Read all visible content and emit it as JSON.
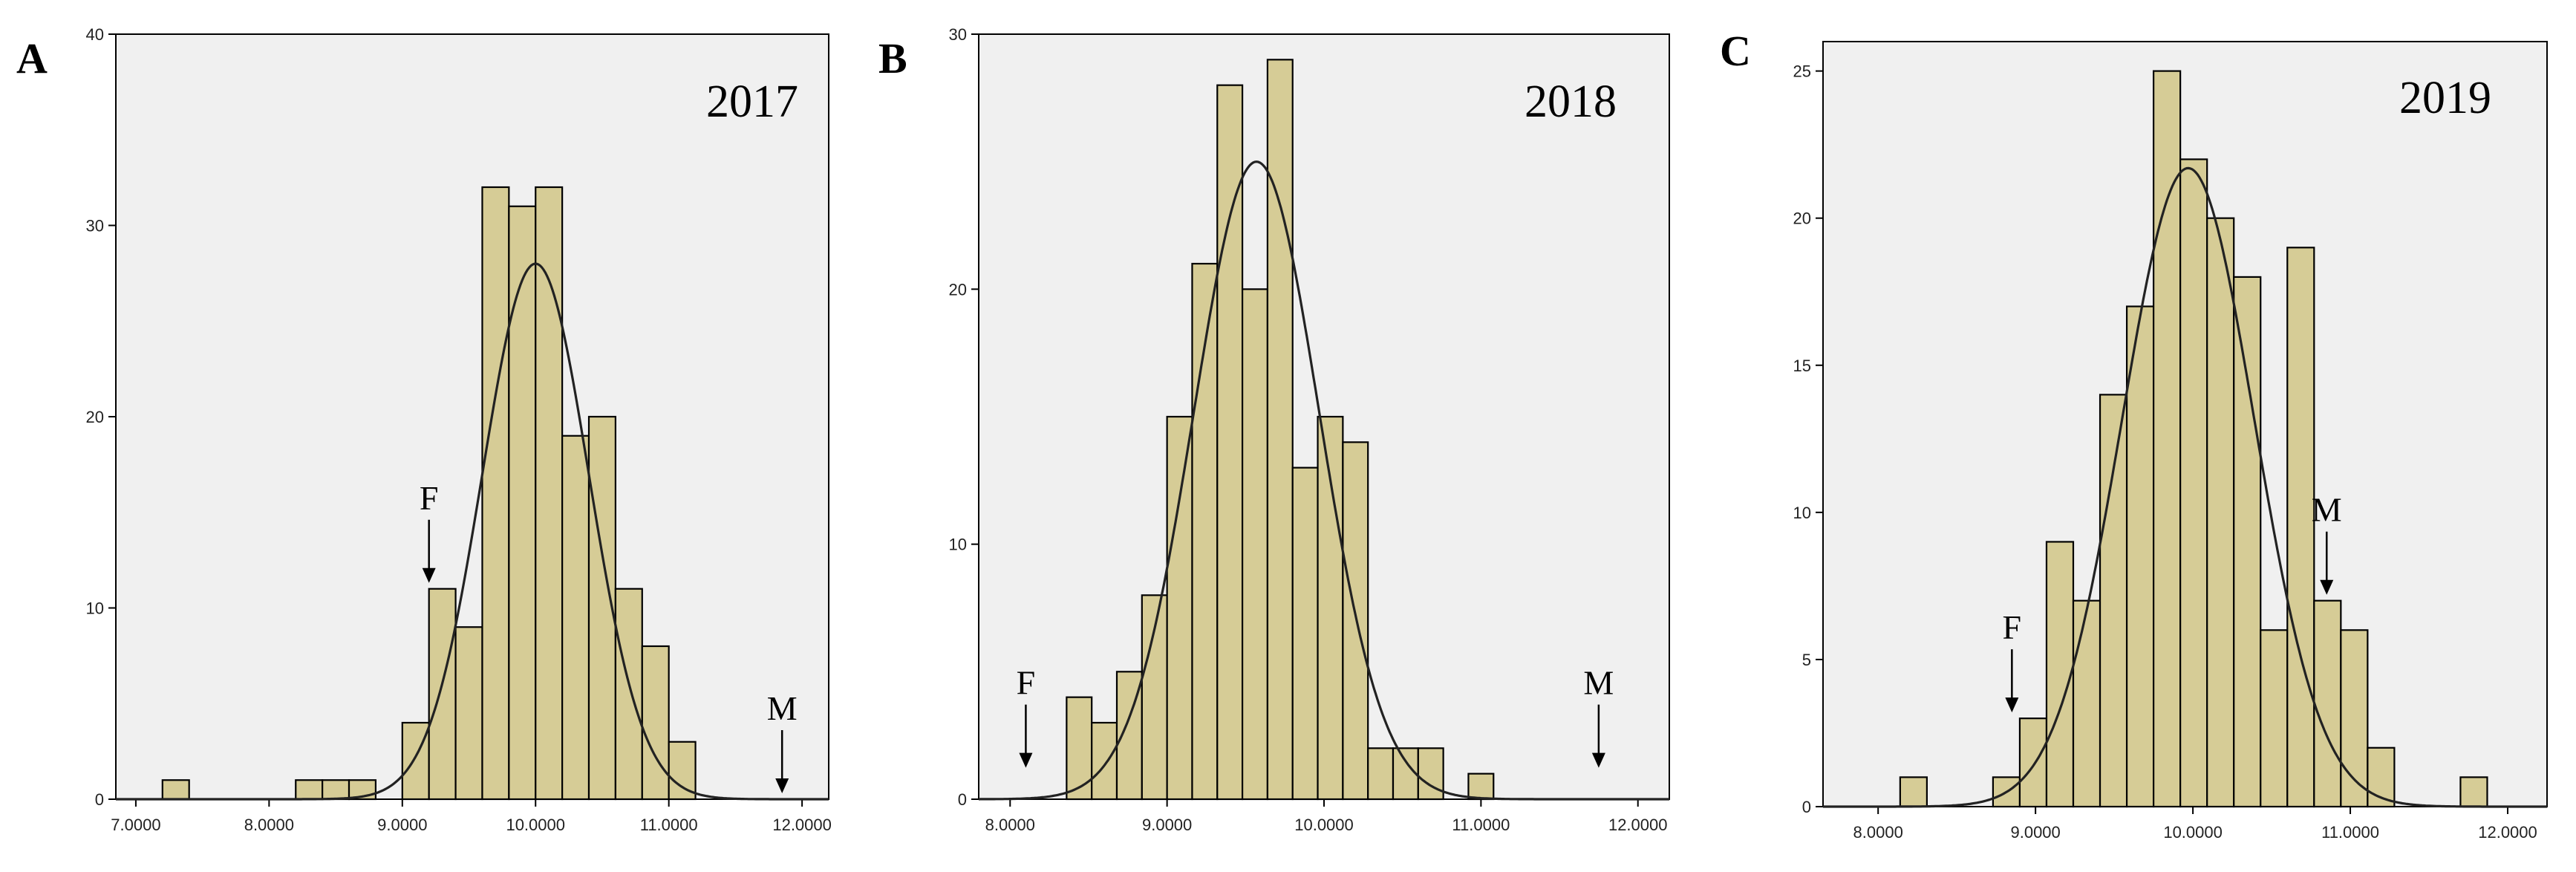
{
  "colors": {
    "bar_fill": "#d6cc96",
    "plot_background": "#f0f0f0",
    "curve": "#222222"
  },
  "chart_data": [
    {
      "type": "bar",
      "panel": "A",
      "title": "2017",
      "xlabel": "",
      "ylabel": "",
      "xlim": [
        6.85,
        12.2
      ],
      "ylim": [
        0,
        40
      ],
      "grid": false,
      "x_ticks": [
        7,
        8,
        9,
        10,
        11,
        12
      ],
      "x_tick_labels": [
        "7.0000",
        "8.0000",
        "9.0000",
        "10.0000",
        "11.0000",
        "12.0000"
      ],
      "y_ticks": [
        0,
        10,
        20,
        30,
        40
      ],
      "y_tick_labels": [
        "0",
        "10",
        "20",
        "30",
        "40"
      ],
      "bin_width": 0.2,
      "bin_starts": [
        7.2,
        8.2,
        8.4,
        8.6,
        9.0,
        9.2,
        9.4,
        9.6,
        9.8,
        10.0,
        10.2,
        10.4,
        10.6,
        10.8,
        11.0
      ],
      "values": [
        1,
        1,
        1,
        1,
        4,
        11,
        9,
        32,
        31,
        32,
        19,
        20,
        11,
        8,
        3
      ],
      "normal_curve": {
        "mean": 10.0,
        "sd": 0.4,
        "peak": 28
      },
      "markers": [
        {
          "label": "F",
          "x": 9.2,
          "y": 11
        },
        {
          "label": "M",
          "x": 11.85,
          "y": 0
        }
      ]
    },
    {
      "type": "bar",
      "panel": "B",
      "title": "2018",
      "xlabel": "",
      "ylabel": "",
      "xlim": [
        7.8,
        12.2
      ],
      "ylim": [
        0,
        30
      ],
      "grid": false,
      "x_ticks": [
        8,
        9,
        10,
        11,
        12
      ],
      "x_tick_labels": [
        "8.0000",
        "9.0000",
        "10.0000",
        "11.0000",
        "12.0000"
      ],
      "y_ticks": [
        0,
        10,
        20,
        30
      ],
      "y_tick_labels": [
        "0",
        "10",
        "20",
        "30"
      ],
      "bin_width": 0.16,
      "bin_starts": [
        8.36,
        8.52,
        8.68,
        8.84,
        9.0,
        9.16,
        9.32,
        9.48,
        9.64,
        9.8,
        9.96,
        10.12,
        10.28,
        10.44,
        10.6,
        10.92
      ],
      "values": [
        4,
        3,
        5,
        8,
        15,
        21,
        28,
        20,
        29,
        13,
        15,
        14,
        2,
        2,
        2,
        1
      ],
      "normal_curve": {
        "mean": 9.57,
        "sd": 0.4,
        "peak": 25
      },
      "markers": [
        {
          "label": "F",
          "x": 8.1,
          "y": 1
        },
        {
          "label": "M",
          "x": 11.75,
          "y": 1
        }
      ]
    },
    {
      "type": "bar",
      "panel": "C",
      "title": "2019",
      "xlabel": "",
      "ylabel": "",
      "xlim": [
        7.65,
        12.25
      ],
      "ylim": [
        0,
        26
      ],
      "grid": false,
      "x_ticks": [
        8,
        9,
        10,
        11,
        12
      ],
      "x_tick_labels": [
        "8.0000",
        "9.0000",
        "10.0000",
        "11.0000",
        "12.0000"
      ],
      "y_ticks": [
        0,
        5,
        10,
        15,
        20,
        25
      ],
      "y_tick_labels": [
        "0",
        "5",
        "10",
        "15",
        "20",
        "25"
      ],
      "bin_width": 0.17,
      "bin_starts": [
        8.14,
        8.73,
        8.9,
        9.07,
        9.24,
        9.41,
        9.58,
        9.75,
        9.92,
        10.09,
        10.26,
        10.43,
        10.6,
        10.77,
        10.94,
        11.11,
        11.7
      ],
      "values": [
        1,
        1,
        3,
        9,
        7,
        14,
        17,
        25,
        22,
        20,
        18,
        6,
        19,
        7,
        6,
        2,
        1
      ],
      "normal_curve": {
        "mean": 9.97,
        "sd": 0.42,
        "peak": 21.7
      },
      "markers": [
        {
          "label": "F",
          "x": 8.85,
          "y": 3
        },
        {
          "label": "M",
          "x": 10.85,
          "y": 7
        }
      ]
    }
  ]
}
